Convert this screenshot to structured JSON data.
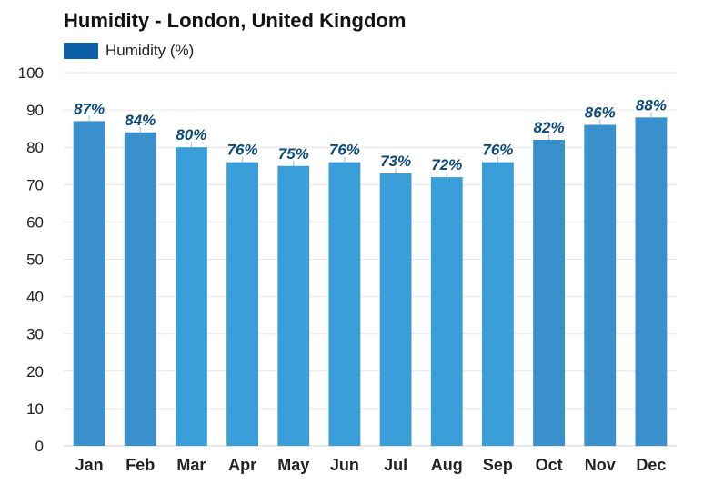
{
  "chart_data": {
    "type": "bar",
    "title": "Humidity - London, United Kingdom",
    "legend": [
      {
        "name": "Humidity (%)",
        "color": "#0a5fa8"
      }
    ],
    "categories": [
      "Jan",
      "Feb",
      "Mar",
      "Apr",
      "May",
      "Jun",
      "Jul",
      "Aug",
      "Sep",
      "Oct",
      "Nov",
      "Dec"
    ],
    "values": [
      87,
      84,
      80,
      76,
      75,
      76,
      73,
      72,
      76,
      82,
      86,
      88
    ],
    "value_labels": [
      "87%",
      "84%",
      "80%",
      "76%",
      "75%",
      "76%",
      "73%",
      "72%",
      "76%",
      "82%",
      "86%",
      "88%"
    ],
    "ylim": [
      0,
      100
    ],
    "yticks": [
      "0",
      "10",
      "20",
      "30",
      "40",
      "50",
      "60",
      "70",
      "80",
      "90",
      "100"
    ],
    "xlabel": "",
    "ylabel": "",
    "grid": true,
    "legend_position": "top-left",
    "colors": {
      "bar_light": "#3a9fd9",
      "bar_dark": "#3a8fcd",
      "label": "#0b4a78",
      "grid": "#e6e6e6"
    }
  }
}
